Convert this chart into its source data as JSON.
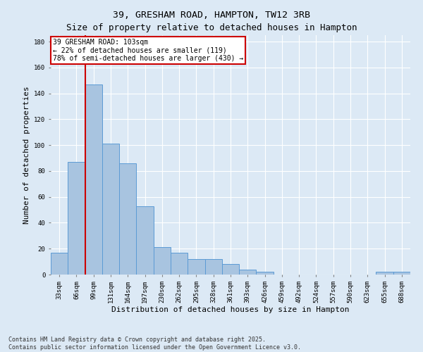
{
  "title": "39, GRESHAM ROAD, HAMPTON, TW12 3RB",
  "subtitle": "Size of property relative to detached houses in Hampton",
  "xlabel": "Distribution of detached houses by size in Hampton",
  "ylabel": "Number of detached properties",
  "categories": [
    "33sqm",
    "66sqm",
    "99sqm",
    "131sqm",
    "164sqm",
    "197sqm",
    "230sqm",
    "262sqm",
    "295sqm",
    "328sqm",
    "361sqm",
    "393sqm",
    "426sqm",
    "459sqm",
    "492sqm",
    "524sqm",
    "557sqm",
    "590sqm",
    "623sqm",
    "655sqm",
    "688sqm"
  ],
  "values": [
    17,
    87,
    147,
    101,
    86,
    53,
    21,
    17,
    12,
    12,
    8,
    4,
    2,
    0,
    0,
    0,
    0,
    0,
    0,
    2,
    2
  ],
  "bar_color": "#a8c4e0",
  "bar_edge_color": "#5b9bd5",
  "vline_x": 1.5,
  "vline_color": "#cc0000",
  "annotation_text": "39 GRESHAM ROAD: 103sqm\n← 22% of detached houses are smaller (119)\n78% of semi-detached houses are larger (430) →",
  "annotation_box_color": "#ffffff",
  "annotation_box_edge_color": "#cc0000",
  "background_color": "#dce9f5",
  "plot_bg_color": "#dce9f5",
  "ylim": [
    0,
    185
  ],
  "yticks": [
    0,
    20,
    40,
    60,
    80,
    100,
    120,
    140,
    160,
    180
  ],
  "footer": "Contains HM Land Registry data © Crown copyright and database right 2025.\nContains public sector information licensed under the Open Government Licence v3.0.",
  "title_fontsize": 9.5,
  "axis_label_fontsize": 8,
  "tick_fontsize": 6.5,
  "footer_fontsize": 6,
  "annotation_fontsize": 7
}
